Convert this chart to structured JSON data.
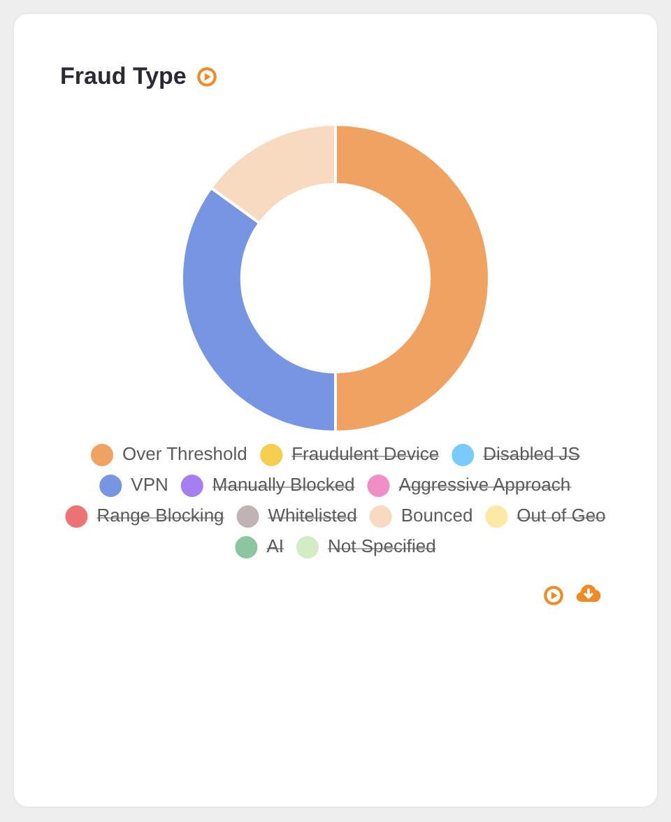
{
  "chart_data": {
    "type": "donut",
    "title": "Fraud Type",
    "categories": [
      "Over Threshold",
      "Fraudulent Device",
      "Disabled JS",
      "VPN",
      "Manually Blocked",
      "Aggressive Approach",
      "Range Blocking",
      "Whitelisted",
      "Bounced",
      "Out of Geo",
      "AI",
      "Not Specified"
    ],
    "values": [
      50,
      null,
      null,
      35,
      null,
      null,
      null,
      null,
      15,
      null,
      null,
      null
    ],
    "colors": [
      "#f0a262",
      "#f5cd4f",
      "#7acbfa",
      "#7795e2",
      "#a57ef2",
      "#f08ec6",
      "#ec7474",
      "#bfb3b3",
      "#f8dac0",
      "#fbe9a5",
      "#8cc6a0",
      "#d2ecc6"
    ],
    "legend": "bottom"
  }
}
